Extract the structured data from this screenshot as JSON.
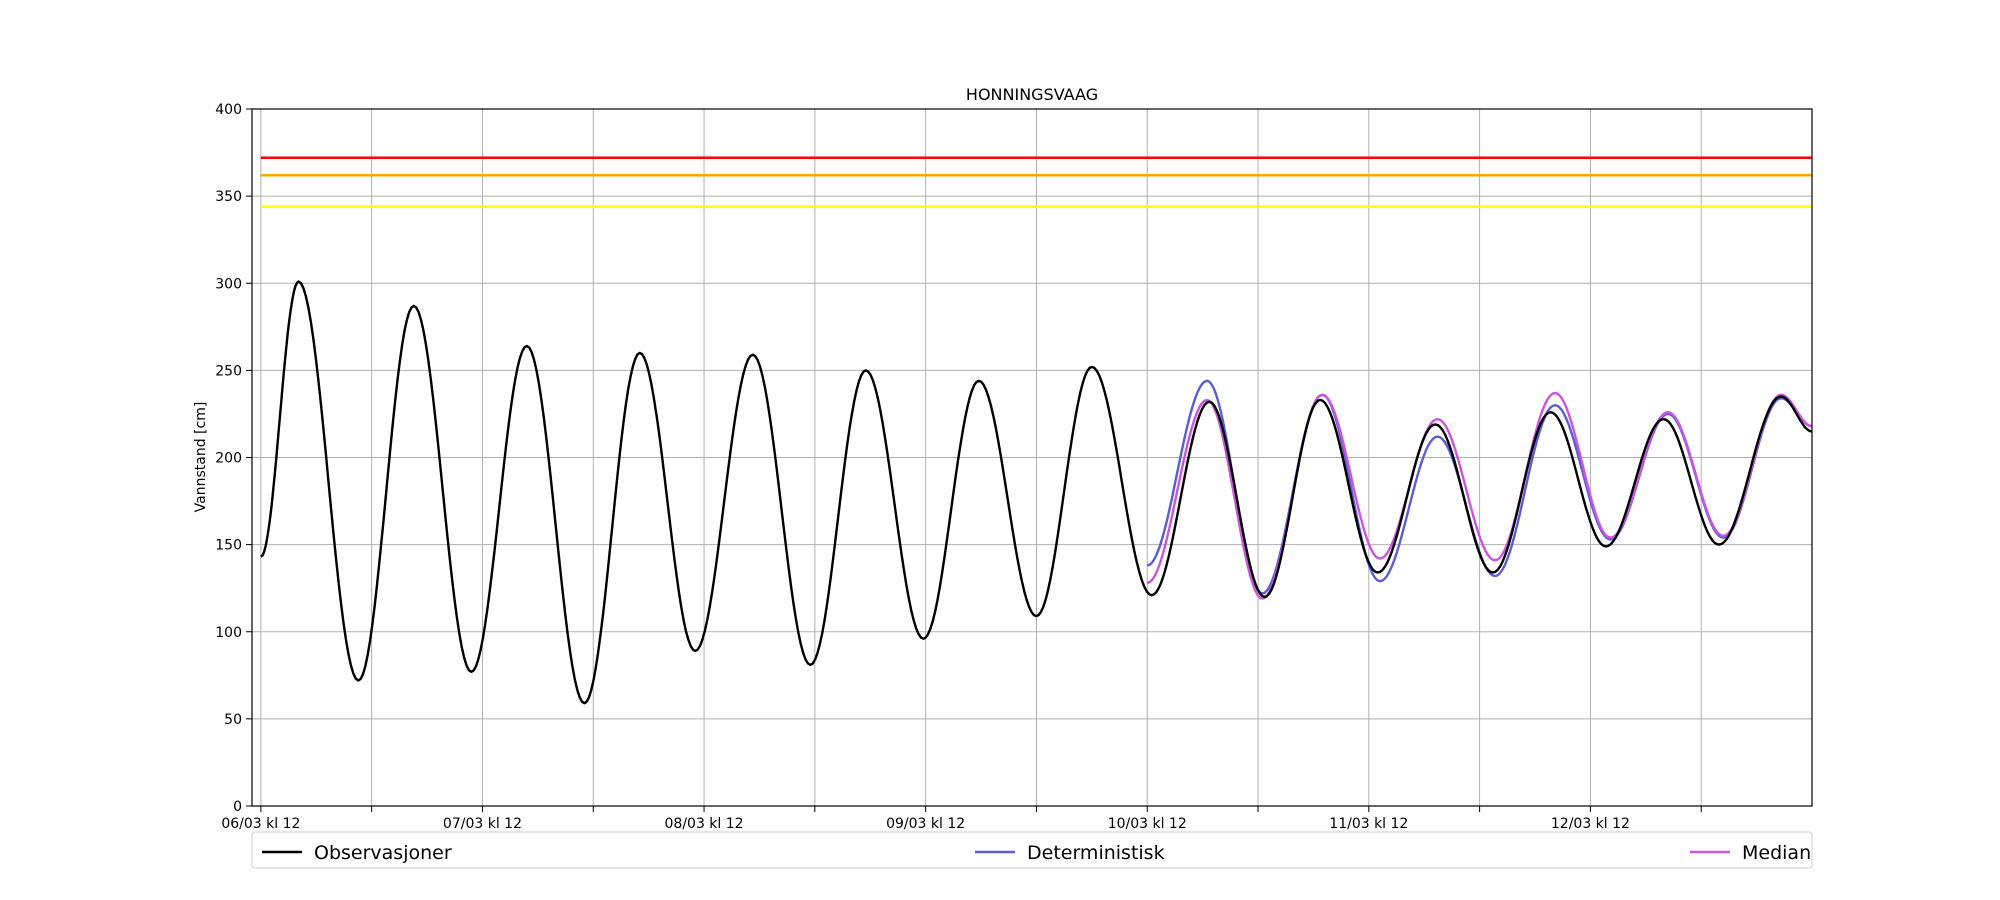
{
  "chart_data": {
    "type": "line",
    "title": "HONNINGSVAAG",
    "ylabel": "Vannstand [cm]",
    "xlabel": "",
    "ylim": [
      0,
      400
    ],
    "y_ticks": [
      0,
      50,
      100,
      150,
      200,
      250,
      300,
      350,
      400
    ],
    "xlim": [
      -0.04,
      7.0
    ],
    "x_unit": "days since 06/03 kl 12",
    "x_major_ticks": [
      {
        "pos": 0,
        "label": "06/03 kl 12"
      },
      {
        "pos": 1,
        "label": "07/03 kl 12"
      },
      {
        "pos": 2,
        "label": "08/03 kl 12"
      },
      {
        "pos": 3,
        "label": "09/03 kl 12"
      },
      {
        "pos": 4,
        "label": "10/03 kl 12"
      },
      {
        "pos": 5,
        "label": "11/03 kl 12"
      },
      {
        "pos": 6,
        "label": "12/03 kl 12"
      }
    ],
    "x_minor_ticks": [
      0.5,
      1.5,
      2.5,
      3.5,
      4.5,
      5.5,
      6.5
    ],
    "grid": true,
    "legend_position": "bottom",
    "threshold_lines": [
      {
        "value": 372,
        "color": "#ff0000"
      },
      {
        "value": 362,
        "color": "#ffa500"
      },
      {
        "value": 344,
        "color": "#ffff00"
      }
    ],
    "series": [
      {
        "name": "Observasjoner",
        "color": "#000000",
        "points": [
          [
            0.0,
            143
          ],
          [
            0.17,
            301
          ],
          [
            0.44,
            72
          ],
          [
            0.69,
            287
          ],
          [
            0.95,
            77
          ],
          [
            1.2,
            264
          ],
          [
            1.46,
            59
          ],
          [
            1.71,
            260
          ],
          [
            1.96,
            89
          ],
          [
            2.22,
            259
          ],
          [
            2.48,
            81
          ],
          [
            2.73,
            250
          ],
          [
            2.99,
            96
          ],
          [
            3.24,
            244
          ],
          [
            3.5,
            109
          ],
          [
            3.75,
            252
          ],
          [
            4.02,
            121
          ],
          [
            4.28,
            232
          ],
          [
            4.53,
            120
          ],
          [
            4.78,
            233
          ],
          [
            5.04,
            134
          ],
          [
            5.3,
            219
          ],
          [
            5.56,
            134
          ],
          [
            5.82,
            226
          ],
          [
            6.07,
            149
          ],
          [
            6.33,
            222
          ],
          [
            6.58,
            150
          ],
          [
            6.86,
            235
          ],
          [
            7.0,
            215
          ]
        ]
      },
      {
        "name": "Deterministisk",
        "color": "#5c5cd6",
        "points": [
          [
            4.0,
            138
          ],
          [
            4.27,
            244
          ],
          [
            4.52,
            122
          ],
          [
            4.79,
            236
          ],
          [
            5.05,
            129
          ],
          [
            5.31,
            212
          ],
          [
            5.57,
            132
          ],
          [
            5.84,
            230
          ],
          [
            6.09,
            153
          ],
          [
            6.35,
            225
          ],
          [
            6.6,
            154
          ],
          [
            6.86,
            234
          ],
          [
            7.0,
            218
          ]
        ]
      },
      {
        "name": "Median",
        "color": "#cc55dd",
        "points": [
          [
            4.0,
            128
          ],
          [
            4.27,
            233
          ],
          [
            4.52,
            119
          ],
          [
            4.79,
            236
          ],
          [
            5.05,
            142
          ],
          [
            5.31,
            222
          ],
          [
            5.57,
            141
          ],
          [
            5.84,
            237
          ],
          [
            6.09,
            154
          ],
          [
            6.35,
            226
          ],
          [
            6.6,
            155
          ],
          [
            6.86,
            236
          ],
          [
            7.0,
            218
          ]
        ]
      }
    ]
  }
}
